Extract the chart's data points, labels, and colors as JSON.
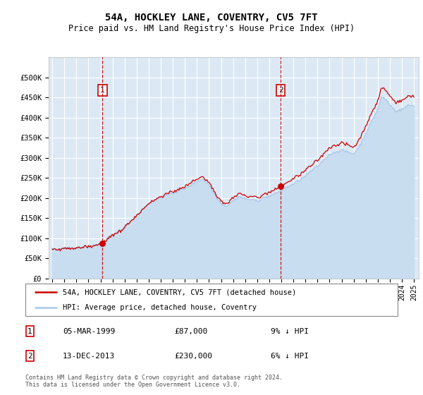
{
  "title": "54A, HOCKLEY LANE, COVENTRY, CV5 7FT",
  "subtitle": "Price paid vs. HM Land Registry's House Price Index (HPI)",
  "legend_line1": "54A, HOCKLEY LANE, COVENTRY, CV5 7FT (detached house)",
  "legend_line2": "HPI: Average price, detached house, Coventry",
  "footnote": "Contains HM Land Registry data © Crown copyright and database right 2024.\nThis data is licensed under the Open Government Licence v3.0.",
  "purchase1_date": "05-MAR-1999",
  "purchase1_price": 87000,
  "purchase1_label": "1",
  "purchase1_note": "9% ↓ HPI",
  "purchase2_date": "13-DEC-2013",
  "purchase2_price": 230000,
  "purchase2_label": "2",
  "purchase2_note": "6% ↓ HPI",
  "ylim": [
    0,
    550000
  ],
  "yticks": [
    0,
    50000,
    100000,
    150000,
    200000,
    250000,
    300000,
    350000,
    400000,
    450000,
    500000
  ],
  "ytick_labels": [
    "£0",
    "£50K",
    "£100K",
    "£150K",
    "£200K",
    "£250K",
    "£300K",
    "£350K",
    "£400K",
    "£450K",
    "£500K"
  ],
  "hpi_color": "#a8c8e8",
  "hpi_fill_color": "#c8ddf0",
  "price_color": "#cc0000",
  "bg_color": "#dce9f5",
  "grid_color": "#ffffff",
  "marker_color": "#cc0000",
  "vline_color": "#cc0000",
  "annotation_box_color": "#cc0000",
  "purchase1_x_year": 1999.17,
  "purchase2_x_year": 2013.95,
  "xlim_left": 1994.7,
  "xlim_right": 2025.4
}
